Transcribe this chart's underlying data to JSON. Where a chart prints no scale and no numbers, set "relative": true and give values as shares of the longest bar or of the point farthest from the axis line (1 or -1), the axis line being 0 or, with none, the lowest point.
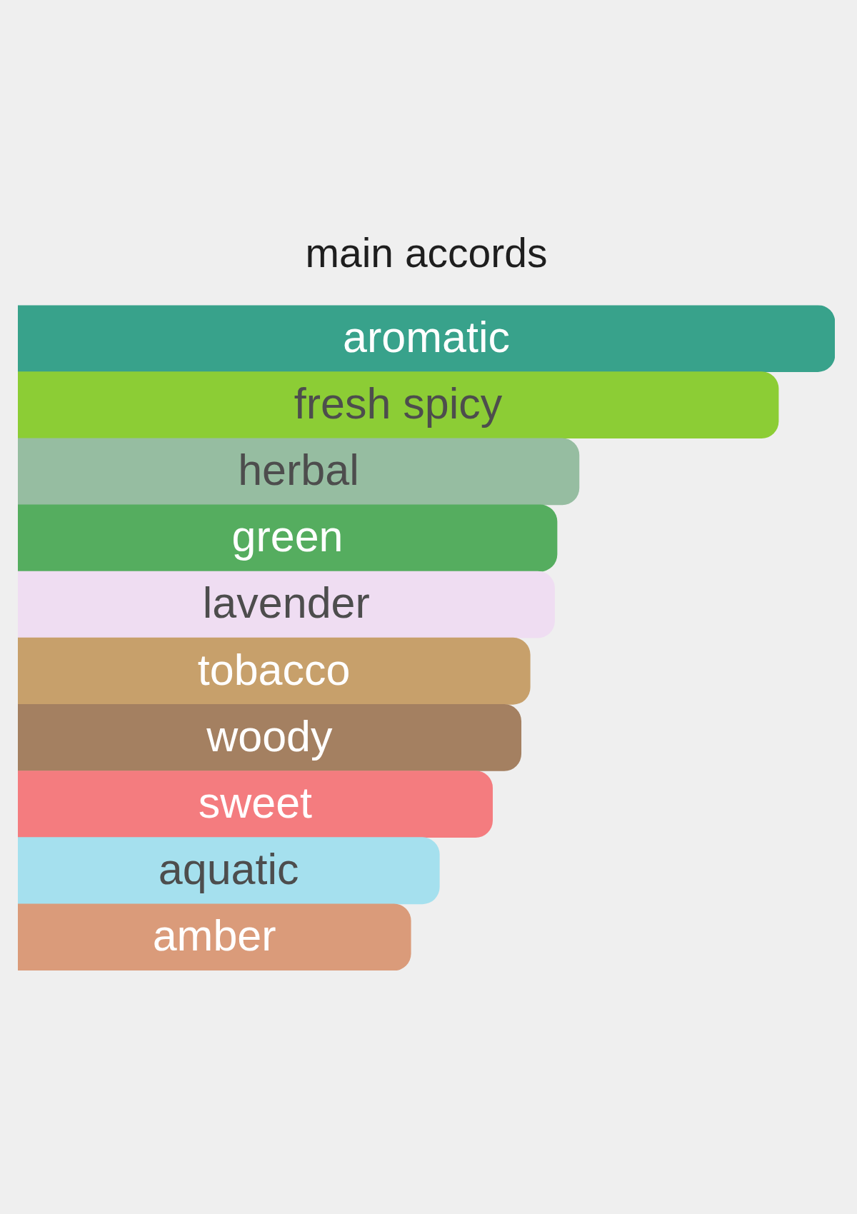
{
  "chart_data": {
    "type": "bar",
    "orientation": "horizontal",
    "relative": true,
    "title": "main accords",
    "categories": [
      "aromatic",
      "fresh spicy",
      "herbal",
      "green",
      "lavender",
      "tobacco",
      "woody",
      "sweet",
      "aquatic",
      "amber"
    ],
    "values": [
      1,
      0.931,
      0.687,
      0.66,
      0.657,
      0.627,
      0.616,
      0.581,
      0.516,
      0.481
    ],
    "colors": [
      "#38a28b",
      "#8ccd35",
      "#96bda1",
      "#55ad5f",
      "#efddf2",
      "#c7a06b",
      "#a48061",
      "#f47c7f",
      "#a5e0ee",
      "#da9b7a"
    ]
  }
}
